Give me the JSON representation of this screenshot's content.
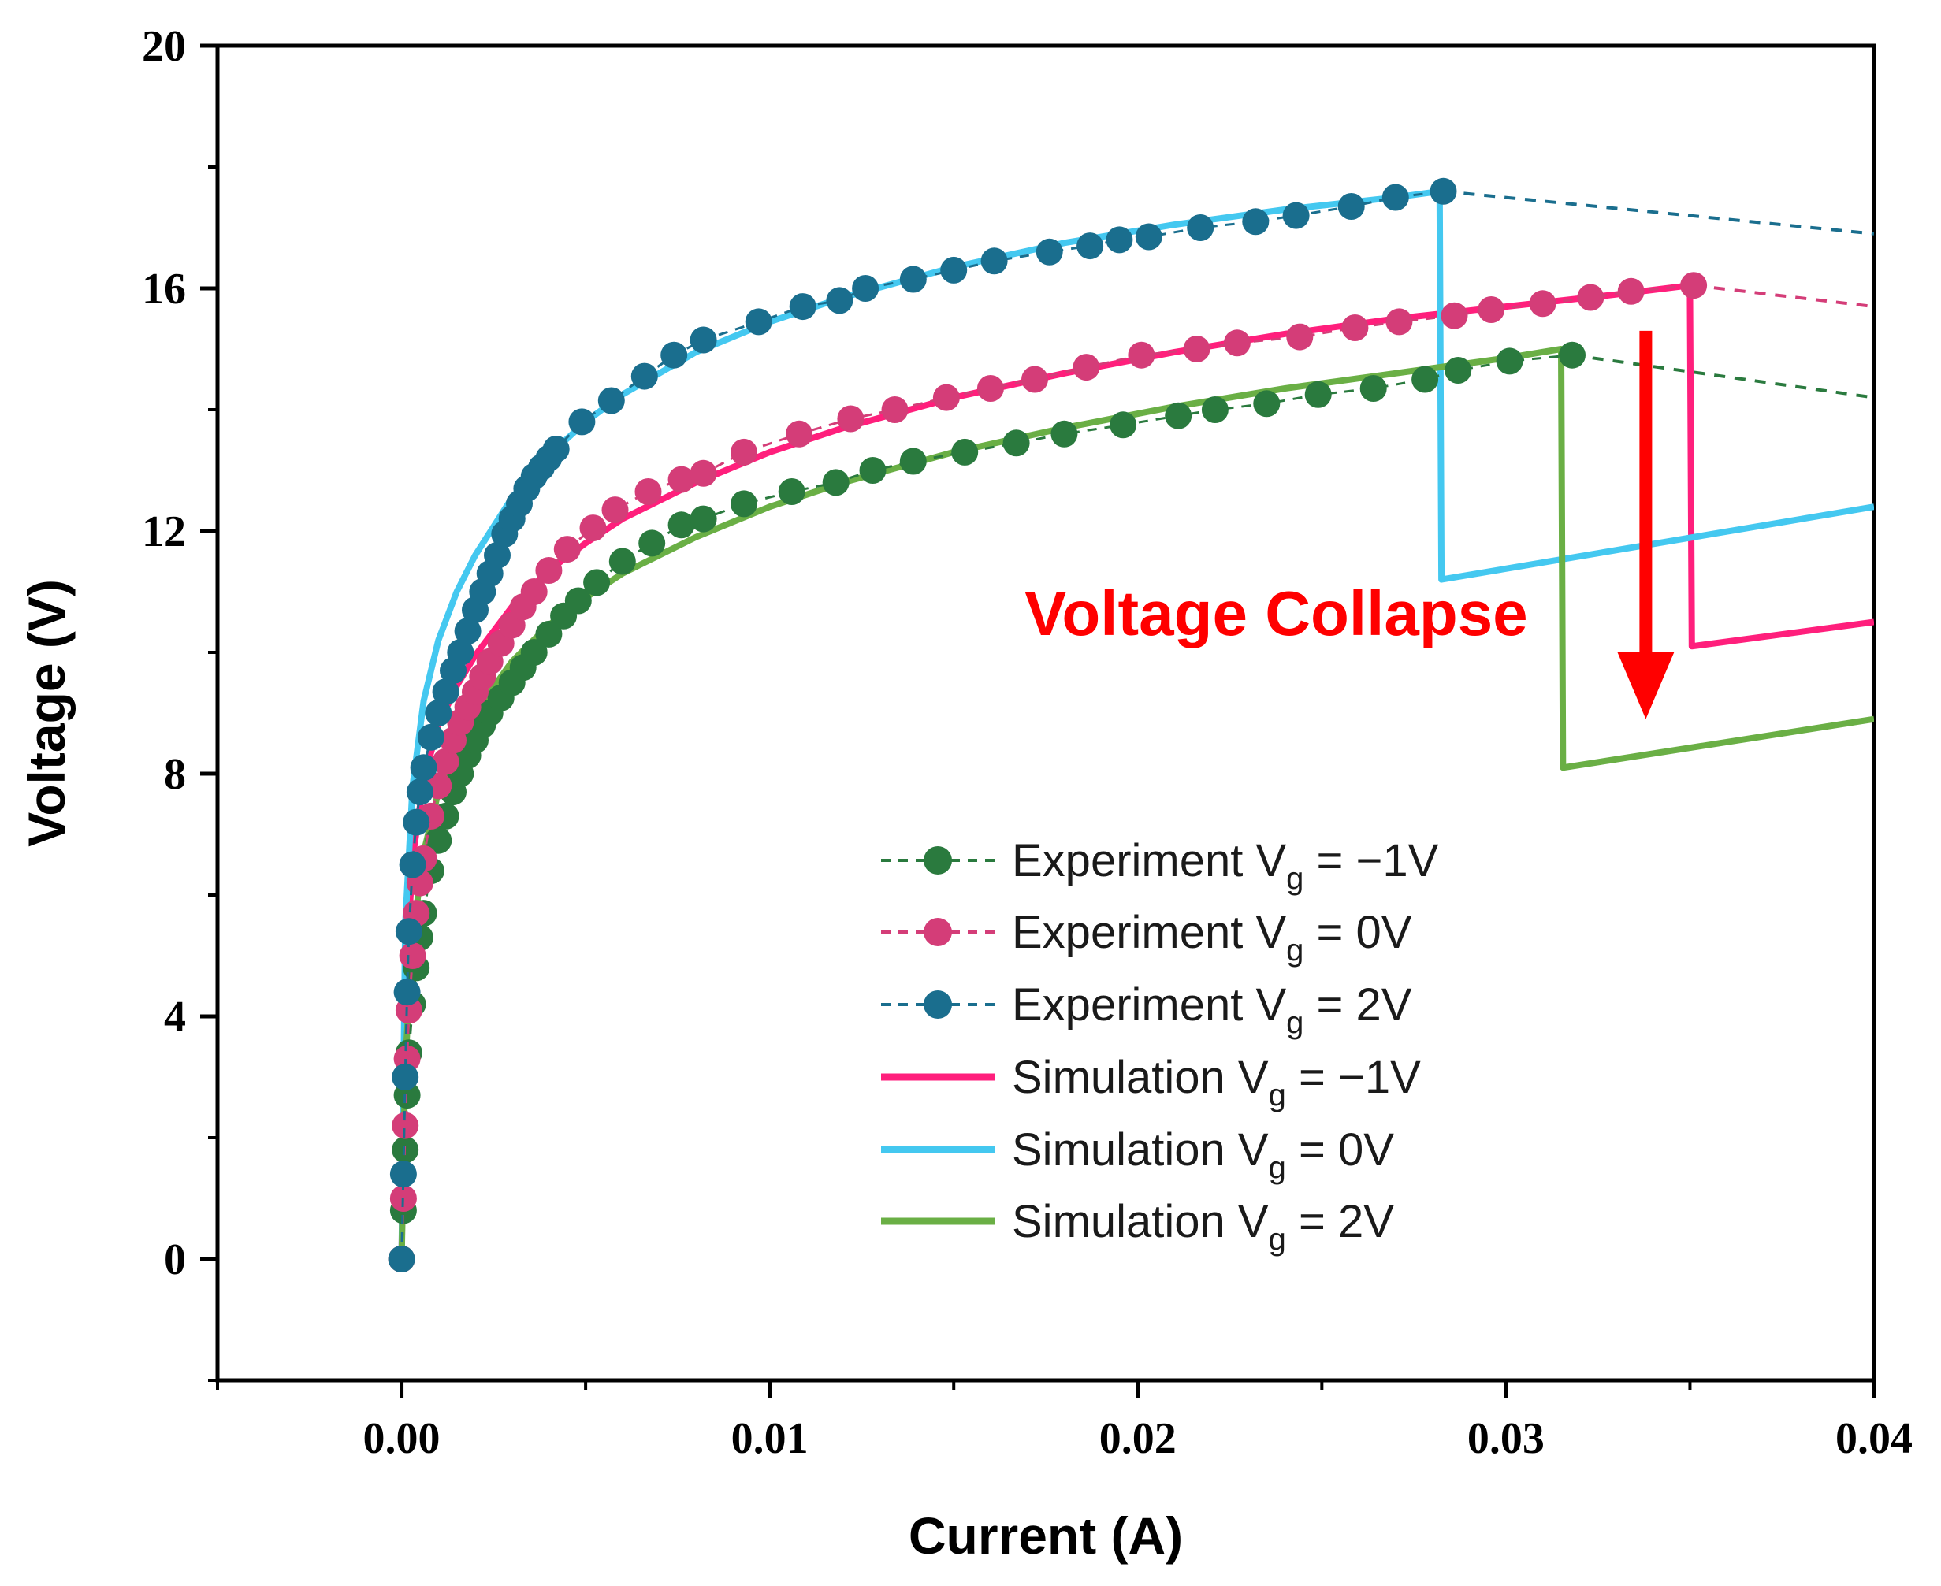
{
  "chart_data": {
    "type": "line",
    "title": "",
    "xlabel": "Current (A)",
    "ylabel": "Voltage (V)",
    "xlim": [
      -0.005,
      0.04
    ],
    "ylim": [
      -2,
      20
    ],
    "x_ticks": [
      0.0,
      0.01,
      0.02,
      0.03,
      0.04
    ],
    "x_tick_labels": [
      "0.00",
      "0.01",
      "0.02",
      "0.03",
      "0.04"
    ],
    "y_ticks": [
      0,
      4,
      8,
      12,
      16,
      20
    ],
    "y_tick_labels": [
      "0",
      "4",
      "8",
      "12",
      "16",
      "20"
    ],
    "legend_position": "bottom-center",
    "annotation": {
      "text": "Voltage Collapse",
      "color": "#ff0000",
      "arrow": {
        "x": 0.0338,
        "y_from": 15.3,
        "y_to": 8.9
      }
    },
    "series": [
      {
        "kind": "experiment",
        "label_prefix": "Experiment V",
        "label_sub": "g",
        "label_suffix": " = −1V",
        "color": "#2a7a3e",
        "x": [
          0,
          5e-05,
          0.0001,
          0.00015,
          0.0002,
          0.0003,
          0.0004,
          0.0005,
          0.0006,
          0.0008,
          0.001,
          0.0012,
          0.0014,
          0.0016,
          0.0018,
          0.002,
          0.0022,
          0.0024,
          0.0027,
          0.003,
          0.0033,
          0.0036,
          0.004,
          0.0044,
          0.0048,
          0.0053,
          0.006,
          0.0068,
          0.0076,
          0.0082,
          0.0093,
          0.0106,
          0.0118,
          0.0128,
          0.0139,
          0.0153,
          0.0167,
          0.018,
          0.0196,
          0.0211,
          0.0221,
          0.0235,
          0.0249,
          0.0264,
          0.0278,
          0.0287,
          0.0301,
          0.0318
        ],
        "y": [
          0,
          0.8,
          1.8,
          2.7,
          3.4,
          4.2,
          4.8,
          5.3,
          5.7,
          6.4,
          6.9,
          7.3,
          7.7,
          8.0,
          8.3,
          8.55,
          8.8,
          9.0,
          9.25,
          9.5,
          9.75,
          10.0,
          10.3,
          10.6,
          10.85,
          11.15,
          11.5,
          11.8,
          12.1,
          12.2,
          12.45,
          12.65,
          12.8,
          13.0,
          13.15,
          13.3,
          13.45,
          13.6,
          13.75,
          13.9,
          14.0,
          14.1,
          14.25,
          14.35,
          14.5,
          14.65,
          14.8,
          14.9
        ],
        "dashed_tail": {
          "x": [
            0.0318,
            0.04
          ],
          "y": [
            14.9,
            14.2
          ]
        }
      },
      {
        "kind": "experiment",
        "label_prefix": "Experiment V",
        "label_sub": "g",
        "label_suffix": " =  0V",
        "color": "#d43d78",
        "x": [
          0,
          5e-05,
          0.0001,
          0.00015,
          0.0002,
          0.0003,
          0.0004,
          0.0005,
          0.0006,
          0.0008,
          0.001,
          0.0012,
          0.0014,
          0.0016,
          0.0018,
          0.002,
          0.0022,
          0.0024,
          0.0027,
          0.003,
          0.0033,
          0.0036,
          0.004,
          0.0045,
          0.0052,
          0.0058,
          0.0067,
          0.0076,
          0.0082,
          0.0093,
          0.0108,
          0.0122,
          0.0134,
          0.0148,
          0.016,
          0.0172,
          0.0186,
          0.0201,
          0.0216,
          0.0227,
          0.0244,
          0.0259,
          0.0271,
          0.0286,
          0.0296,
          0.031,
          0.0323,
          0.0334,
          0.0351
        ],
        "y": [
          0,
          1.0,
          2.2,
          3.3,
          4.1,
          5.0,
          5.7,
          6.2,
          6.6,
          7.3,
          7.8,
          8.2,
          8.55,
          8.85,
          9.1,
          9.35,
          9.6,
          9.85,
          10.15,
          10.45,
          10.75,
          11.0,
          11.35,
          11.7,
          12.05,
          12.35,
          12.65,
          12.85,
          12.95,
          13.3,
          13.6,
          13.85,
          14.0,
          14.2,
          14.35,
          14.5,
          14.7,
          14.9,
          15.0,
          15.1,
          15.2,
          15.35,
          15.45,
          15.55,
          15.65,
          15.75,
          15.85,
          15.95,
          16.05
        ],
        "dashed_tail": {
          "x": [
            0.0351,
            0.04
          ],
          "y": [
            16.05,
            15.7
          ]
        }
      },
      {
        "kind": "experiment",
        "label_prefix": "Experiment V",
        "label_sub": "g",
        "label_suffix": " =  2V",
        "color": "#1a6e8e",
        "x": [
          0,
          5e-05,
          0.0001,
          0.00015,
          0.0002,
          0.0003,
          0.0004,
          0.0005,
          0.0006,
          0.0008,
          0.001,
          0.0012,
          0.0014,
          0.0016,
          0.0018,
          0.002,
          0.0022,
          0.0024,
          0.0026,
          0.0028,
          0.003,
          0.0032,
          0.0034,
          0.0036,
          0.0038,
          0.004,
          0.0042,
          0.0049,
          0.0057,
          0.0066,
          0.0074,
          0.0082,
          0.0097,
          0.0109,
          0.0119,
          0.0126,
          0.0139,
          0.015,
          0.0161,
          0.0176,
          0.0187,
          0.0195,
          0.0203,
          0.0217,
          0.0232,
          0.0243,
          0.0258,
          0.027,
          0.0283
        ],
        "y": [
          0,
          1.4,
          3.0,
          4.4,
          5.4,
          6.5,
          7.2,
          7.7,
          8.1,
          8.6,
          9.0,
          9.35,
          9.7,
          10.0,
          10.35,
          10.7,
          11.0,
          11.3,
          11.6,
          11.95,
          12.2,
          12.45,
          12.7,
          12.9,
          13.05,
          13.2,
          13.35,
          13.8,
          14.15,
          14.55,
          14.9,
          15.15,
          15.45,
          15.7,
          15.8,
          16.0,
          16.15,
          16.3,
          16.45,
          16.6,
          16.7,
          16.8,
          16.85,
          17.0,
          17.1,
          17.2,
          17.35,
          17.5,
          17.6
        ],
        "dashed_tail": {
          "x": [
            0.0283,
            0.04
          ],
          "y": [
            17.6,
            16.9
          ]
        }
      },
      {
        "kind": "simulation",
        "label_prefix": "Simulation V",
        "label_sub": "g",
        "label_suffix": " = −1V",
        "color": "#ff1f7c",
        "x": [
          0,
          0.0001,
          0.0003,
          0.0006,
          0.001,
          0.0015,
          0.002,
          0.003,
          0.004,
          0.005,
          0.006,
          0.008,
          0.01,
          0.012,
          0.015,
          0.018,
          0.021,
          0.024,
          0.027,
          0.03,
          0.033,
          0.035,
          0.03505,
          0.04
        ],
        "y": [
          0,
          4.5,
          6.6,
          7.9,
          8.8,
          9.45,
          9.95,
          10.75,
          11.35,
          11.8,
          12.2,
          12.8,
          13.3,
          13.7,
          14.2,
          14.6,
          14.95,
          15.25,
          15.5,
          15.7,
          15.9,
          16.05,
          10.1,
          10.5
        ]
      },
      {
        "kind": "simulation",
        "label_prefix": "Simulation V",
        "label_sub": "g",
        "label_suffix": " =  0V",
        "color": "#44c8f0",
        "x": [
          0,
          0.0001,
          0.0003,
          0.0006,
          0.001,
          0.0015,
          0.002,
          0.003,
          0.004,
          0.005,
          0.006,
          0.008,
          0.01,
          0.012,
          0.015,
          0.018,
          0.021,
          0.024,
          0.027,
          0.0282,
          0.02825,
          0.04
        ],
        "y": [
          0,
          5.5,
          7.8,
          9.2,
          10.2,
          11.0,
          11.6,
          12.55,
          13.25,
          13.8,
          14.25,
          14.95,
          15.45,
          15.85,
          16.35,
          16.75,
          17.05,
          17.3,
          17.5,
          17.6,
          11.2,
          12.4
        ]
      },
      {
        "kind": "simulation",
        "label_prefix": "Simulation V",
        "label_sub": "g",
        "label_suffix": " =  2V",
        "color": "#6aaf45",
        "x": [
          0,
          0.0001,
          0.0003,
          0.0006,
          0.001,
          0.0015,
          0.002,
          0.003,
          0.004,
          0.005,
          0.006,
          0.008,
          0.01,
          0.012,
          0.015,
          0.018,
          0.021,
          0.024,
          0.027,
          0.03,
          0.0315,
          0.03155,
          0.04
        ],
        "y": [
          0,
          3.2,
          5.3,
          6.7,
          7.7,
          8.45,
          9.0,
          9.85,
          10.45,
          10.9,
          11.3,
          11.9,
          12.4,
          12.8,
          13.3,
          13.7,
          14.05,
          14.35,
          14.6,
          14.85,
          15.0,
          8.1,
          8.9
        ]
      }
    ]
  }
}
